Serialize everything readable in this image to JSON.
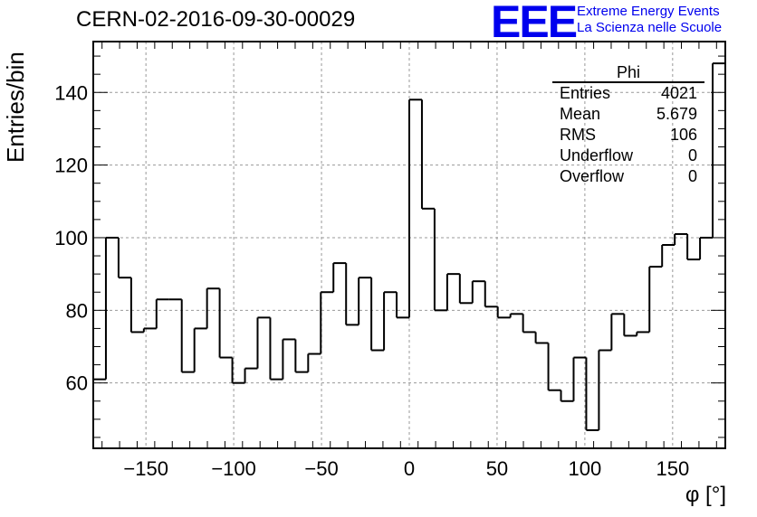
{
  "title": "CERN-02-2016-09-30-00029",
  "logo": {
    "letters": "EEE",
    "line1": "Extreme Energy Events",
    "line2": "La Scienza nelle Scuole",
    "color": "#0000ee"
  },
  "stats": {
    "name": "Phi",
    "rows": [
      {
        "label": "Entries",
        "value": "4021"
      },
      {
        "label": "Mean",
        "value": "5.679"
      },
      {
        "label": "RMS",
        "value": "106"
      },
      {
        "label": "Underflow",
        "value": "0"
      },
      {
        "label": "Overflow",
        "value": "0"
      }
    ]
  },
  "chart_data": {
    "type": "bar",
    "style": "step-histogram",
    "title": "CERN-02-2016-09-30-00029",
    "xlabel": "φ [°]",
    "ylabel": "Entries/bin",
    "xlim": [
      -180,
      180
    ],
    "ylim": [
      42,
      154
    ],
    "xticks": [
      -150,
      -100,
      -50,
      0,
      50,
      100,
      150
    ],
    "yticks": [
      60,
      80,
      100,
      120,
      140
    ],
    "grid": true,
    "bin_width": 7.2,
    "values": [
      61,
      100,
      89,
      74,
      75,
      83,
      83,
      63,
      75,
      86,
      67,
      60,
      64,
      78,
      61,
      72,
      63,
      68,
      85,
      93,
      76,
      89,
      69,
      85,
      78,
      138,
      108,
      80,
      90,
      82,
      88,
      81,
      78,
      79,
      74,
      71,
      58,
      55,
      67,
      47,
      69,
      79,
      73,
      74,
      92,
      98,
      101,
      94,
      100,
      148
    ]
  }
}
